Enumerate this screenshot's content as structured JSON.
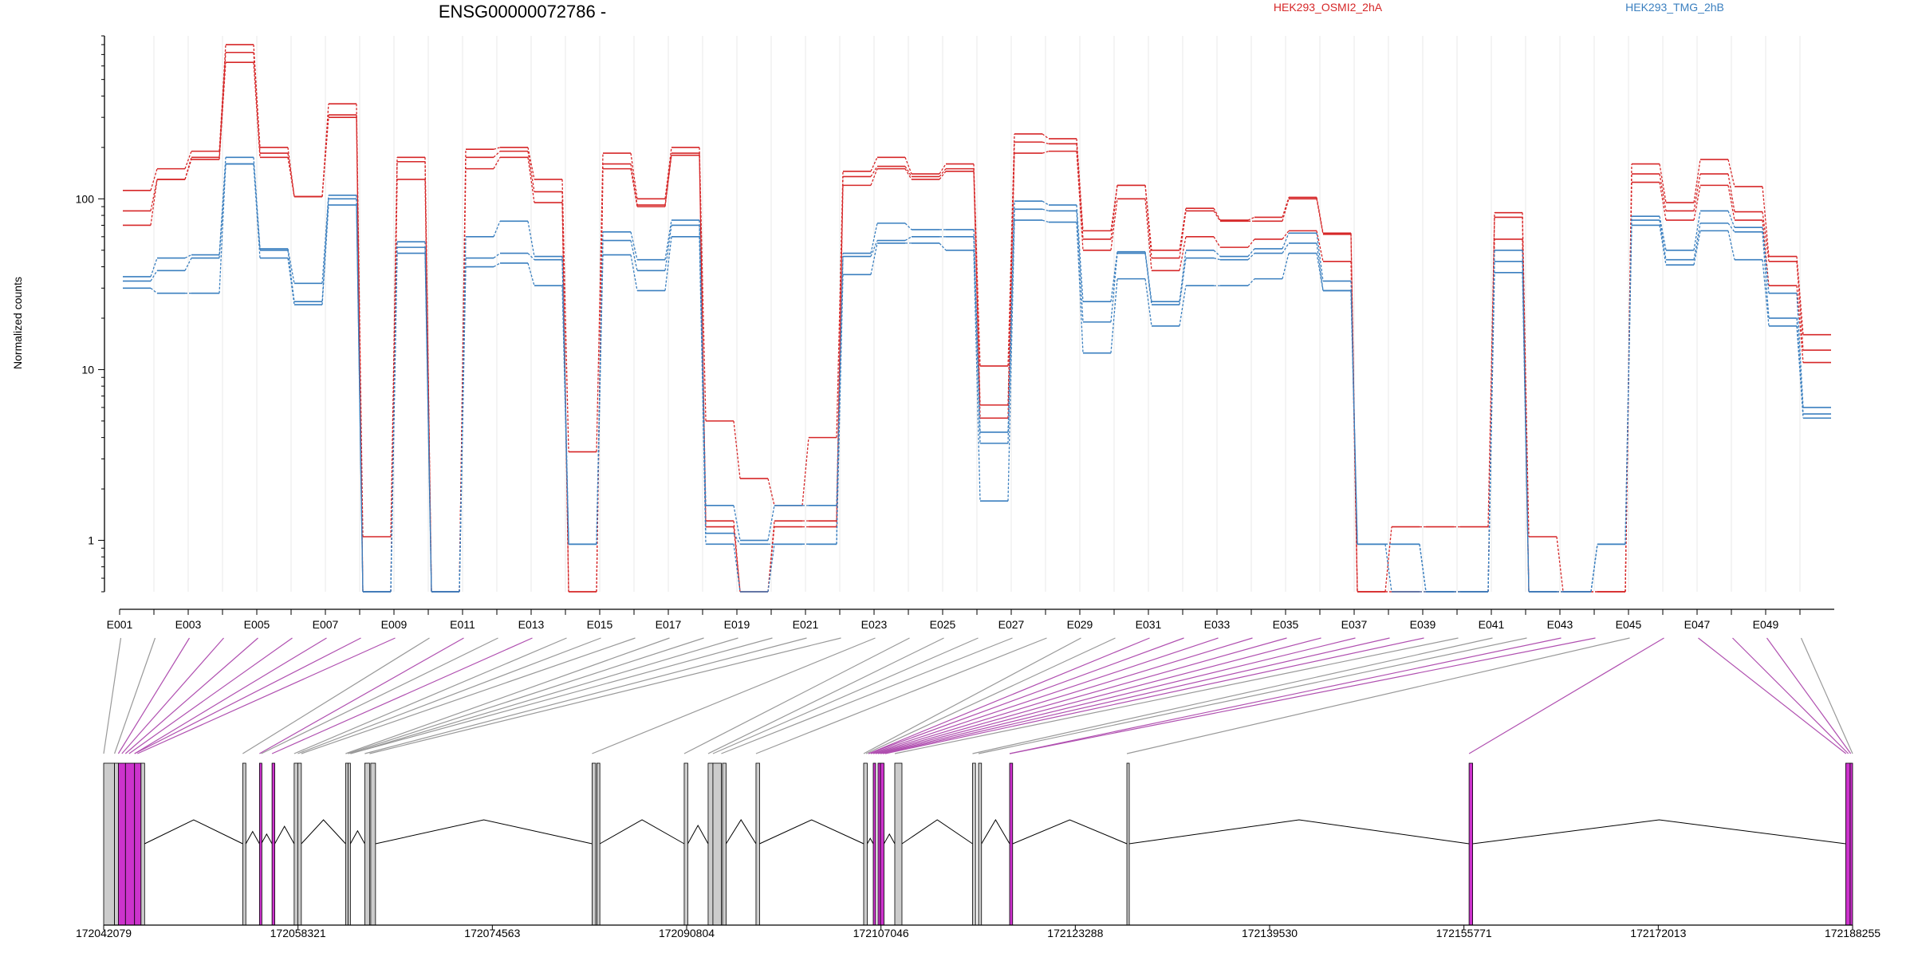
{
  "chart_data": {
    "type": "line",
    "title": "ENSG00000072786 -",
    "ylabel": "Normalized counts",
    "yscale": "log",
    "ylim": [
      0.5,
      900
    ],
    "yticks": [
      1,
      10,
      100
    ],
    "ytick_labels": [
      "1",
      "10",
      "100"
    ],
    "exon_labels_shown": [
      "E001",
      "E003",
      "E005",
      "E007",
      "E009",
      "E011",
      "E013",
      "E015",
      "E017",
      "E019",
      "E021",
      "E023",
      "E025",
      "E027",
      "E029",
      "E031",
      "E033",
      "E035",
      "E037",
      "E039",
      "E041",
      "E043",
      "E045",
      "E047",
      "E049"
    ],
    "groups": [
      {
        "name": "HEK293_OSMI2_2hA",
        "color": "#d62728"
      },
      {
        "name": "HEK293_TMG_2hB",
        "color": "#3a7fbf"
      }
    ],
    "series": [
      {
        "group": "HEK293_OSMI2_2hA",
        "values": [
          112,
          150,
          190,
          800,
          200,
          103,
          360,
          1.05,
          175,
          0.5,
          195,
          200,
          130,
          3.3,
          185,
          100,
          200,
          5,
          2.3,
          1.6,
          4,
          145,
          175,
          140,
          160,
          10.5,
          240,
          225,
          65,
          120,
          50,
          88,
          75,
          78,
          102,
          63,
          0.5,
          0.5,
          0.5,
          0.5,
          83,
          1.05,
          0.5,
          0.5,
          160,
          95,
          170,
          118,
          46,
          16
        ]
      },
      {
        "group": "HEK293_OSMI2_2hA",
        "values": [
          85,
          130,
          175,
          720,
          185,
          103,
          310,
          0.5,
          165,
          0.5,
          175,
          190,
          110,
          0.5,
          160,
          92,
          185,
          1.3,
          0.5,
          1.3,
          1.3,
          135,
          155,
          135,
          150,
          6.2,
          215,
          210,
          58,
          120,
          45,
          85,
          74,
          74,
          100,
          62,
          0.5,
          1.2,
          1.2,
          1.2,
          78,
          0.5,
          0.5,
          0.5,
          140,
          85,
          140,
          84,
          43,
          13
        ]
      },
      {
        "group": "HEK293_OSMI2_2hA",
        "values": [
          70,
          130,
          170,
          630,
          175,
          103,
          300,
          0.5,
          130,
          0.5,
          150,
          175,
          95,
          0.5,
          150,
          90,
          180,
          1.2,
          0.5,
          1.2,
          1.2,
          120,
          150,
          130,
          145,
          5.2,
          185,
          190,
          50,
          100,
          38,
          60,
          52,
          58,
          65,
          43,
          0.5,
          0.5,
          0.5,
          0.5,
          58,
          0.5,
          0.5,
          0.5,
          125,
          75,
          120,
          75,
          31,
          11
        ]
      },
      {
        "group": "HEK293_TMG_2hB",
        "values": [
          35,
          45,
          47,
          175,
          51,
          32,
          105,
          0.5,
          56,
          0.5,
          60,
          74,
          46,
          0.95,
          64,
          44,
          75,
          1.6,
          1.0,
          1.6,
          1.6,
          48,
          72,
          66,
          66,
          4.3,
          97,
          92,
          25,
          49,
          25,
          50,
          46,
          51,
          63,
          33,
          0.95,
          0.95,
          0.5,
          0.5,
          50,
          0.5,
          0.5,
          0.95,
          79,
          50,
          85,
          68,
          28,
          6
        ]
      },
      {
        "group": "HEK293_TMG_2hB",
        "values": [
          33,
          38,
          45,
          160,
          50,
          25,
          100,
          0.5,
          52,
          0.5,
          45,
          48,
          44,
          0.95,
          57,
          38,
          70,
          1.1,
          0.95,
          0.95,
          0.95,
          46,
          57,
          60,
          60,
          3.7,
          87,
          85,
          19,
          48,
          24,
          45,
          44,
          48,
          55,
          29,
          0.95,
          0.95,
          0.5,
          0.5,
          43,
          0.5,
          0.5,
          0.95,
          75,
          44,
          72,
          64,
          20,
          5.5
        ]
      },
      {
        "group": "HEK293_TMG_2hB",
        "values": [
          30,
          28,
          28,
          160,
          45,
          24,
          92,
          0.5,
          48,
          0.5,
          40,
          42,
          31,
          0.95,
          47,
          29,
          60,
          0.95,
          0.5,
          0.95,
          0.95,
          36,
          55,
          55,
          50,
          1.7,
          75,
          73,
          12.5,
          34,
          18,
          31,
          31,
          34,
          48,
          29,
          0.95,
          0.5,
          0.5,
          0.5,
          37,
          0.5,
          0.5,
          0.95,
          70,
          41,
          65,
          44,
          18,
          5.2
        ]
      }
    ]
  },
  "gene_model": {
    "coordinate_labels": [
      "172042079",
      "172058321",
      "172074563",
      "172090804",
      "172107046",
      "172123288",
      "172139530",
      "172155771",
      "172172013",
      "172188255"
    ],
    "highlight_color": "#cc33cc",
    "connector_color_default": "#999999",
    "connector_color_highlight": "#b050b0"
  }
}
